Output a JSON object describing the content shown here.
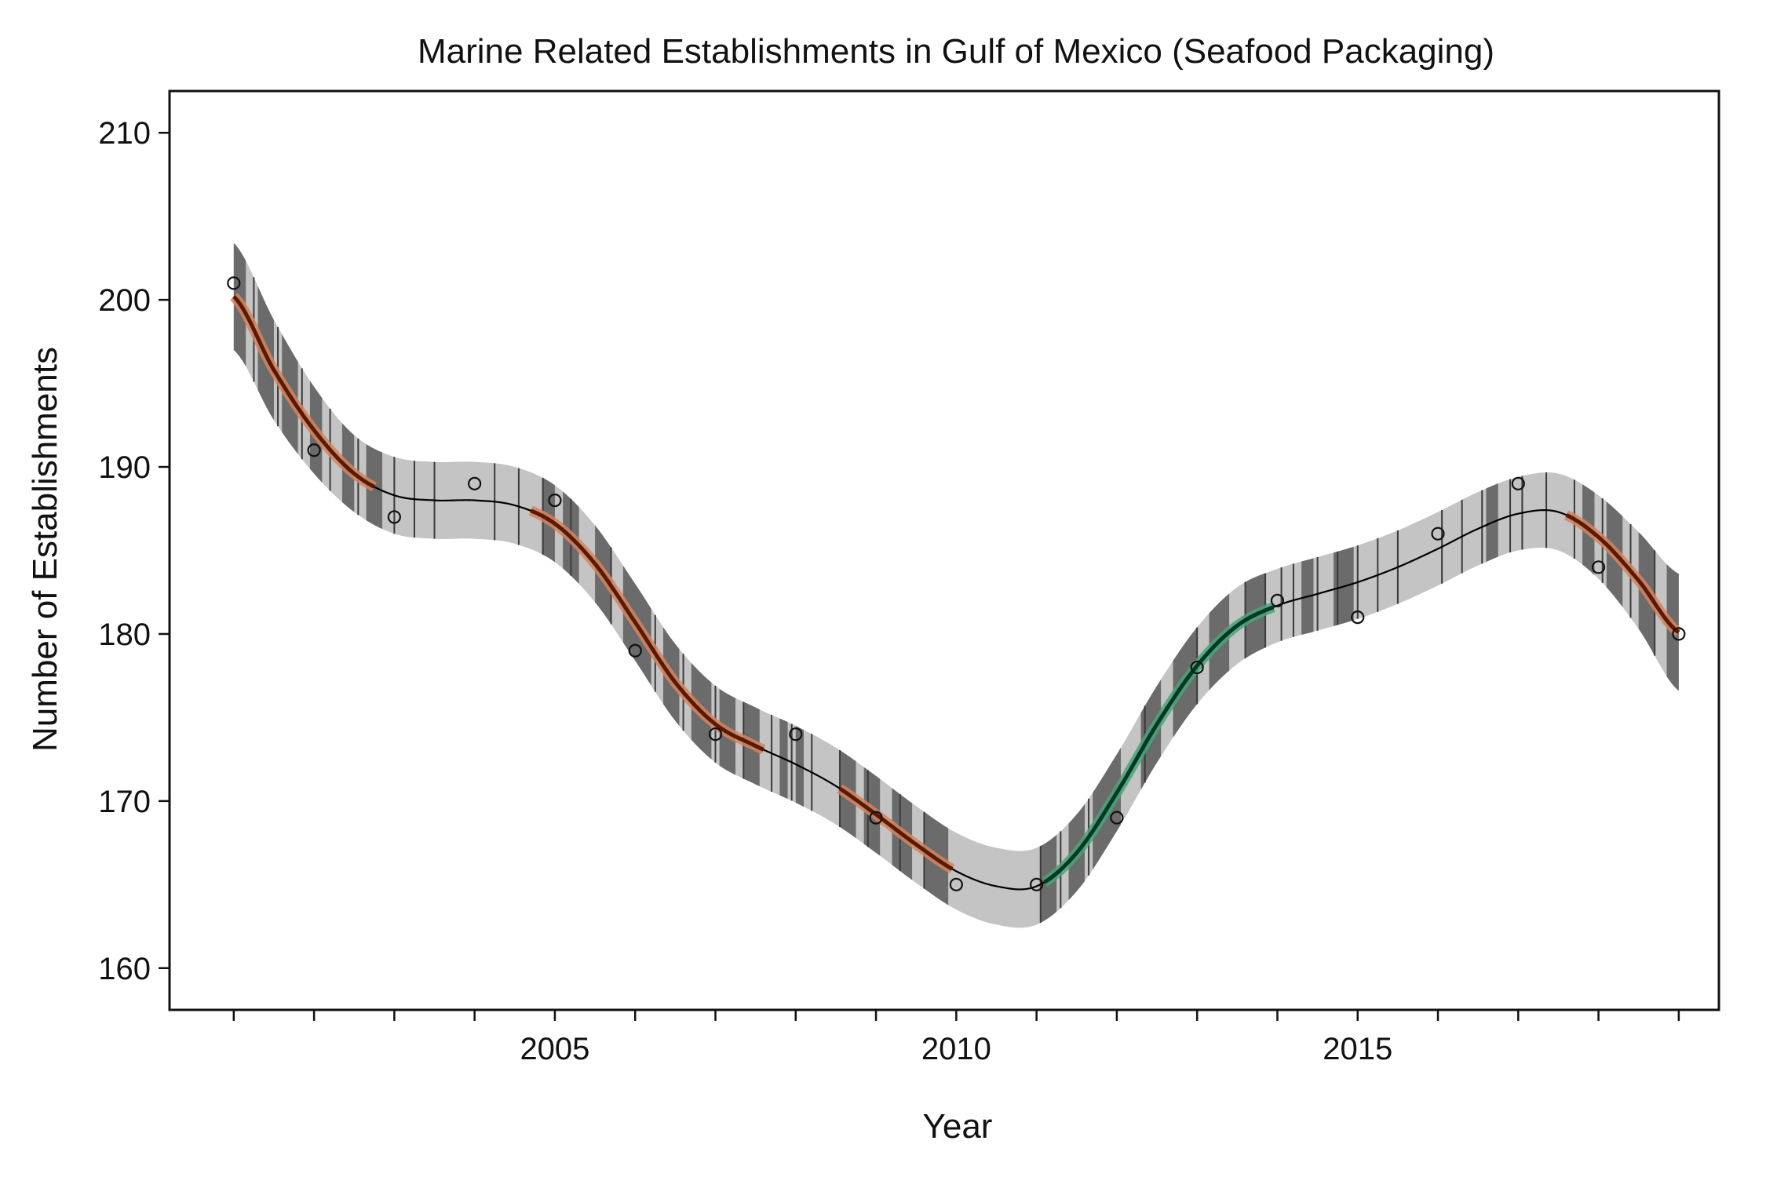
{
  "chart_data": {
    "type": "scatter",
    "title": "Marine Related Establishments in Gulf of Mexico (Seafood Packaging)",
    "xlabel": "Year",
    "ylabel": "Number of Establishments",
    "xlim": [
      2000.2,
      2019.5
    ],
    "ylim": [
      157.5,
      212.5
    ],
    "x_ticks": [
      2001,
      2002,
      2003,
      2004,
      2005,
      2006,
      2007,
      2008,
      2009,
      2010,
      2011,
      2012,
      2013,
      2014,
      2015,
      2016,
      2017,
      2018,
      2019
    ],
    "x_tick_labels": [
      {
        "value": 2005,
        "label": "2005"
      },
      {
        "value": 2010,
        "label": "2010"
      },
      {
        "value": 2015,
        "label": "2015"
      }
    ],
    "y_ticks": [
      {
        "value": 160,
        "label": "160"
      },
      {
        "value": 170,
        "label": "170"
      },
      {
        "value": 180,
        "label": "180"
      },
      {
        "value": 190,
        "label": "190"
      },
      {
        "value": 200,
        "label": "200"
      },
      {
        "value": 210,
        "label": "210"
      }
    ],
    "grid": false,
    "colors": {
      "points": "#111111",
      "trend": "#000000",
      "ci_band": "#c4c4c4",
      "ci_dark": "#6b6b6b",
      "sample_line": "#3a3a3a",
      "decrease": "#5a1a00",
      "decrease_halo": "#d4845f",
      "increase": "#003a22",
      "increase_halo": "#4aa37a"
    },
    "observed": {
      "x": [
        2001,
        2002,
        2003,
        2004,
        2005,
        2006,
        2007,
        2008,
        2009,
        2010,
        2011,
        2012,
        2013,
        2014,
        2015,
        2016,
        2017,
        2018,
        2019
      ],
      "y": [
        201,
        191,
        187,
        189,
        188,
        179,
        174,
        174,
        169,
        165,
        165,
        169,
        178,
        182,
        181,
        186,
        189,
        184,
        180
      ]
    },
    "trend": {
      "x": [
        2001,
        2001.5,
        2002,
        2002.5,
        2003,
        2003.5,
        2004,
        2004.5,
        2005,
        2005.5,
        2006,
        2006.5,
        2007,
        2007.5,
        2008,
        2008.5,
        2009,
        2009.5,
        2010,
        2010.5,
        2011,
        2011.5,
        2012,
        2012.5,
        2013,
        2013.5,
        2014,
        2014.5,
        2015,
        2015.5,
        2016,
        2016.5,
        2017,
        2017.5,
        2018,
        2018.5,
        2019
      ],
      "y": [
        200.2,
        195.8,
        192.2,
        189.6,
        188.3,
        188.0,
        188.0,
        187.7,
        186.6,
        184.2,
        180.7,
        177.1,
        174.6,
        173.3,
        172.2,
        170.9,
        169.2,
        167.4,
        165.8,
        164.9,
        164.9,
        166.9,
        170.5,
        174.6,
        178.1,
        180.5,
        181.7,
        182.4,
        183.1,
        184.0,
        185.1,
        186.3,
        187.2,
        187.3,
        185.8,
        183.2,
        180.1
      ],
      "lower": [
        197.0,
        192.8,
        189.6,
        187.3,
        186.0,
        185.7,
        185.7,
        185.4,
        184.3,
        181.9,
        178.4,
        174.8,
        172.3,
        171.0,
        169.9,
        168.6,
        166.9,
        165.1,
        163.5,
        162.6,
        162.6,
        164.6,
        168.2,
        172.3,
        175.8,
        178.2,
        179.5,
        180.2,
        180.9,
        181.8,
        182.9,
        184.1,
        185.0,
        185.0,
        183.3,
        180.3,
        176.6
      ],
      "upper": [
        203.4,
        198.8,
        194.8,
        191.9,
        190.6,
        190.3,
        190.3,
        190.0,
        188.9,
        186.5,
        183.0,
        179.4,
        176.9,
        175.6,
        174.5,
        173.2,
        171.5,
        169.7,
        168.1,
        167.2,
        167.2,
        169.2,
        172.8,
        176.9,
        180.4,
        182.8,
        183.9,
        184.6,
        185.3,
        186.2,
        187.3,
        188.5,
        189.4,
        189.6,
        188.3,
        186.1,
        183.6
      ]
    },
    "significant_decrease": [
      [
        2001,
        2002.75
      ],
      [
        2004.7,
        2007.6
      ],
      [
        2008.55,
        2009.95
      ],
      [
        2017.6,
        2019
      ]
    ],
    "significant_increase": [
      [
        2011.1,
        2013.95
      ]
    ],
    "dark_strips": [
      [
        2001.0,
        2001.15
      ],
      [
        2001.3,
        2001.5
      ],
      [
        2001.6,
        2001.8
      ],
      [
        2001.95,
        2002.1
      ],
      [
        2002.35,
        2002.5
      ],
      [
        2002.65,
        2002.85
      ],
      [
        2004.85,
        2005.0
      ],
      [
        2005.1,
        2005.3
      ],
      [
        2005.5,
        2005.7
      ],
      [
        2005.85,
        2006.2
      ],
      [
        2006.35,
        2006.55
      ],
      [
        2006.7,
        2006.95
      ],
      [
        2007.05,
        2007.25
      ],
      [
        2007.35,
        2007.55
      ],
      [
        2007.8,
        2007.9
      ],
      [
        2008.0,
        2008.1
      ],
      [
        2008.55,
        2008.75
      ],
      [
        2008.85,
        2009.05
      ],
      [
        2009.2,
        2009.45
      ],
      [
        2009.6,
        2009.9
      ],
      [
        2011.05,
        2011.25
      ],
      [
        2011.4,
        2011.6
      ],
      [
        2011.7,
        2012.05
      ],
      [
        2012.3,
        2012.55
      ],
      [
        2012.7,
        2013.0
      ],
      [
        2013.15,
        2013.4
      ],
      [
        2013.6,
        2013.85
      ],
      [
        2014.3,
        2014.45
      ],
      [
        2014.7,
        2014.95
      ],
      [
        2016.6,
        2016.75
      ],
      [
        2017.8,
        2017.95
      ],
      [
        2018.1,
        2018.3
      ],
      [
        2018.5,
        2018.7
      ],
      [
        2018.85,
        2019.0
      ]
    ],
    "sample_lines": [
      2001.25,
      2001.55,
      2001.85,
      2002.2,
      2002.55,
      2003.0,
      2003.25,
      2003.5,
      2004.25,
      2004.55,
      2004.85,
      2005.2,
      2005.7,
      2006.25,
      2006.6,
      2007.0,
      2007.35,
      2007.7,
      2007.95,
      2008.2,
      2008.55,
      2008.9,
      2009.3,
      2009.6,
      2011.05,
      2011.3,
      2011.65,
      2012.35,
      2013.0,
      2013.6,
      2013.85,
      2014.05,
      2014.2,
      2014.5,
      2014.75,
      2015.0,
      2015.25,
      2015.5,
      2016.05,
      2016.3,
      2016.55,
      2016.9,
      2017.05,
      2017.35,
      2017.7,
      2018.05,
      2018.4,
      2018.7
    ]
  }
}
